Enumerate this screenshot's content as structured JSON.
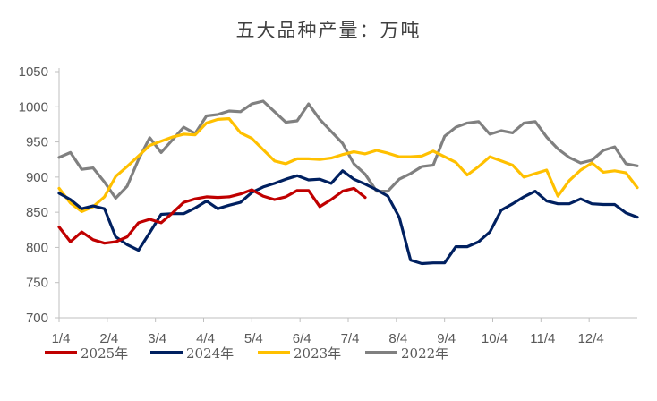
{
  "chart_data": {
    "type": "line",
    "title": "五大品种产量：万吨",
    "xlabel": "",
    "ylabel": "",
    "ylim": [
      700,
      1050
    ],
    "yticks": [
      700,
      750,
      800,
      850,
      900,
      950,
      1000,
      1050
    ],
    "xtick_labels": [
      "1/4",
      "2/4",
      "3/4",
      "4/4",
      "5/4",
      "6/4",
      "7/4",
      "8/4",
      "9/4",
      "10/4",
      "11/4",
      "12/4"
    ],
    "week_count": 52,
    "grid": false,
    "legend_position": "bottom",
    "series": [
      {
        "name": "2025年",
        "color": "#C00000",
        "values": [
          829,
          808,
          822,
          811,
          806,
          808,
          815,
          835,
          840,
          835,
          849,
          864,
          869,
          872,
          871,
          872,
          876,
          882,
          873,
          868,
          872,
          881,
          881,
          858,
          868,
          880,
          884,
          871
        ]
      },
      {
        "name": "2024年",
        "color": "#002060",
        "values": [
          877,
          868,
          855,
          859,
          855,
          815,
          804,
          796,
          821,
          847,
          848,
          848,
          856,
          866,
          855,
          860,
          864,
          878,
          886,
          891,
          897,
          902,
          896,
          897,
          891,
          909,
          897,
          890,
          882,
          873,
          843,
          782,
          777,
          778,
          778,
          801,
          801,
          808,
          822,
          853,
          862,
          872,
          880,
          866,
          862,
          862,
          869,
          862,
          861,
          861,
          849,
          843
        ]
      },
      {
        "name": "2023年",
        "color": "#FFC000",
        "values": [
          884,
          863,
          851,
          858,
          872,
          901,
          915,
          930,
          945,
          951,
          957,
          961,
          960,
          977,
          982,
          983,
          963,
          955,
          939,
          923,
          919,
          926,
          926,
          925,
          927,
          932,
          936,
          933,
          938,
          934,
          929,
          929,
          930,
          937,
          929,
          921,
          903,
          915,
          929,
          923,
          917,
          900,
          905,
          910,
          873,
          895,
          910,
          920,
          907,
          909,
          906,
          885
        ]
      },
      {
        "name": "2022年",
        "color": "#808080",
        "values": [
          928,
          935,
          911,
          913,
          893,
          870,
          887,
          925,
          956,
          935,
          953,
          971,
          962,
          987,
          989,
          994,
          993,
          1004,
          1008,
          993,
          978,
          980,
          1004,
          982,
          965,
          948,
          919,
          904,
          880,
          880,
          897,
          905,
          915,
          917,
          958,
          971,
          977,
          979,
          961,
          966,
          963,
          977,
          979,
          957,
          940,
          928,
          920,
          924,
          938,
          943,
          919,
          916
        ]
      }
    ]
  }
}
